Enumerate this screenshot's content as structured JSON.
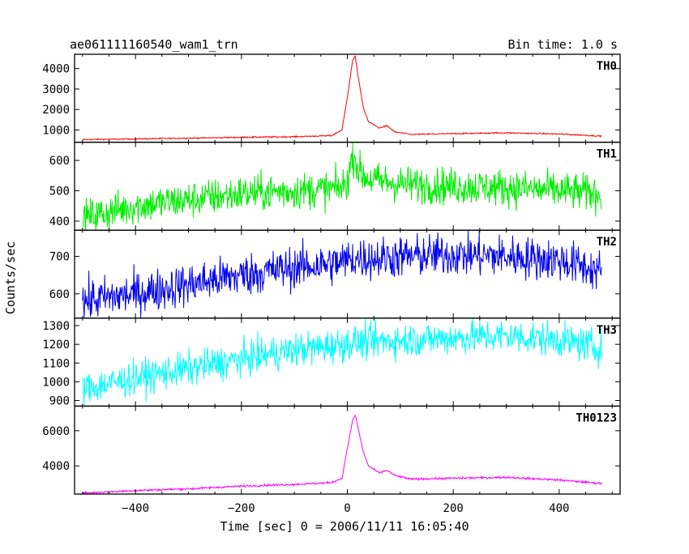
{
  "header": {
    "title": "ae061111160540_wam1_trn",
    "bin_time": "Bin time: 1.0 s"
  },
  "chart_data": {
    "type": "line",
    "xlabel": "Time [sec] 0 = 2006/11/11 16:05:40",
    "ylabel": "Counts/sec",
    "xlim": [
      -515,
      515
    ],
    "x_ticks": [
      -400,
      -200,
      0,
      200,
      400
    ],
    "x": [
      -500,
      -400,
      -300,
      -200,
      -100,
      -30,
      -10,
      0,
      10,
      15,
      20,
      30,
      40,
      60,
      75,
      90,
      120,
      200,
      300,
      400,
      480
    ],
    "grid": false,
    "series": [
      {
        "name": "TH0",
        "color": "#ff0000",
        "noise": 15,
        "ylim": [
          400,
          4700
        ],
        "y_ticks": [
          1000,
          2000,
          3000,
          4000
        ],
        "values": [
          530,
          560,
          600,
          640,
          670,
          720,
          1000,
          2600,
          4400,
          4600,
          3700,
          2100,
          1400,
          1100,
          1200,
          900,
          780,
          820,
          860,
          800,
          700
        ]
      },
      {
        "name": "TH1",
        "color": "#00ee00",
        "noise": 30,
        "ylim": [
          370,
          660
        ],
        "y_ticks": [
          400,
          500,
          600
        ],
        "values": [
          410,
          450,
          470,
          490,
          500,
          505,
          510,
          530,
          620,
          610,
          570,
          550,
          540,
          530,
          530,
          525,
          520,
          515,
          510,
          500,
          490
        ]
      },
      {
        "name": "TH2",
        "color": "#0000ee",
        "noise": 28,
        "ylim": [
          535,
          770
        ],
        "y_ticks": [
          600,
          700
        ],
        "values": [
          580,
          600,
          625,
          650,
          670,
          680,
          685,
          690,
          695,
          695,
          695,
          695,
          695,
          695,
          697,
          698,
          700,
          705,
          700,
          690,
          660
        ]
      },
      {
        "name": "TH3",
        "color": "#00ffff",
        "noise": 45,
        "ylim": [
          870,
          1340
        ],
        "y_ticks": [
          900,
          1000,
          1100,
          1200,
          1300
        ],
        "values": [
          960,
          1020,
          1070,
          1120,
          1170,
          1190,
          1200,
          1205,
          1210,
          1210,
          1210,
          1210,
          1215,
          1215,
          1220,
          1220,
          1225,
          1235,
          1245,
          1225,
          1180
        ]
      },
      {
        "name": "TH0123",
        "color": "#ff00ff",
        "noise": 28,
        "ylim": [
          2400,
          7400
        ],
        "y_ticks": [
          4000,
          6000
        ],
        "values": [
          2450,
          2600,
          2700,
          2850,
          2950,
          3050,
          3300,
          5000,
          6600,
          6900,
          6200,
          4800,
          4000,
          3600,
          3750,
          3450,
          3250,
          3300,
          3350,
          3200,
          3000
        ]
      }
    ]
  }
}
